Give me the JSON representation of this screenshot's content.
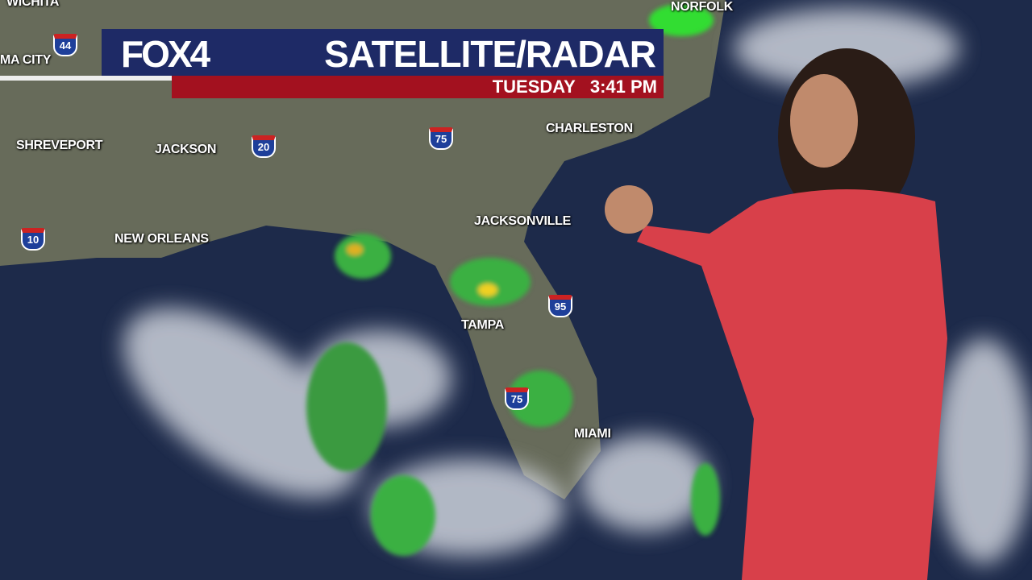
{
  "broadcast": {
    "logo": "FOX4",
    "title": "SATELLITE/RADAR",
    "day": "TUESDAY",
    "time": "3:41 PM"
  },
  "cities": [
    "WICHITA",
    "MA CITY",
    "SHREVEPORT",
    "JACKSON",
    "NEW ORLEANS",
    "NORFOLK",
    "CHARLESTON",
    "JACKSONVILLE",
    "TAMPA",
    "MIAMI"
  ],
  "interstates": [
    "44",
    "20",
    "75",
    "10",
    "95",
    "75"
  ],
  "colors": {
    "banner_blue": "#1e2a66",
    "banner_red": "#a3111f",
    "ocean": "#1d2a4a",
    "land": "#6a6e5e",
    "radar_green": "#2faa3a",
    "presenter_dress": "#d8404a"
  }
}
